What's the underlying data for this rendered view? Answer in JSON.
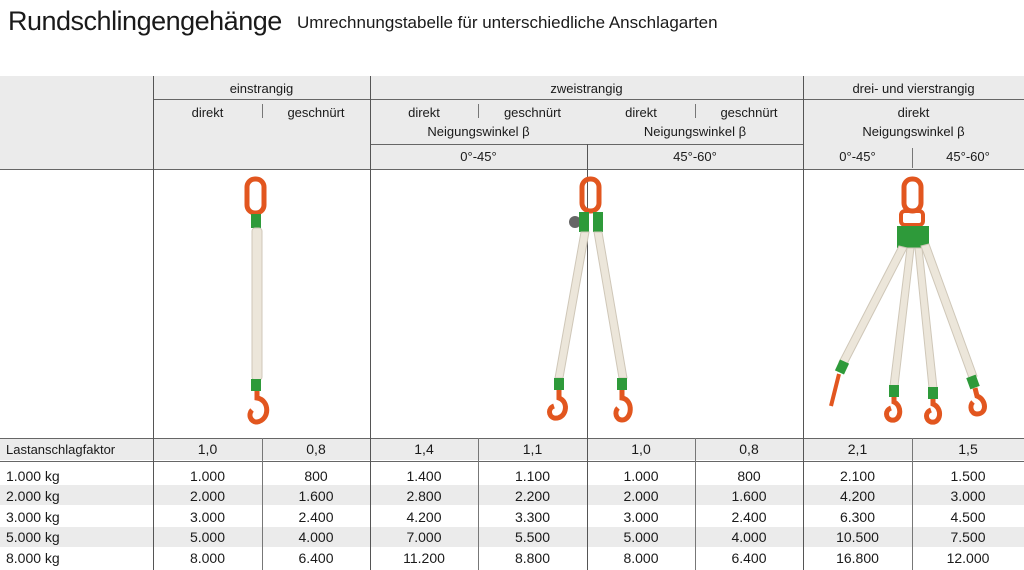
{
  "title": "Rundschlingengehänge",
  "subtitle": "Umrechnungstabelle für unterschiedliche Anschlagarten",
  "table": {
    "groups": [
      "einstrangig",
      "zweistrangig",
      "drei- und vierstrangig"
    ],
    "sub_labels": {
      "einstrangig": [
        "direkt",
        "geschnürt"
      ],
      "zweistrangig_a": [
        "direkt",
        "geschnürt"
      ],
      "zweistrangig_b": [
        "direkt",
        "geschnürt"
      ],
      "drei_direkt": "direkt"
    },
    "neigungswinkel": "Neigungswinkel β",
    "angles": [
      "0°-45°",
      "45°-60°",
      "0°-45°",
      "45°-60°"
    ],
    "factor_label": "Lastanschlagfaktor",
    "factors": [
      "1,0",
      "0,8",
      "1,4",
      "1,1",
      "1,0",
      "0,8",
      "2,1",
      "1,5"
    ],
    "rows": [
      {
        "label": "1.000 kg",
        "values": [
          "1.000",
          "800",
          "1.400",
          "1.100",
          "1.000",
          "800",
          "2.100",
          "1.500"
        ]
      },
      {
        "label": "2.000 kg",
        "values": [
          "2.000",
          "1.600",
          "2.800",
          "2.200",
          "2.000",
          "1.600",
          "4.200",
          "3.000"
        ]
      },
      {
        "label": "3.000 kg",
        "values": [
          "3.000",
          "2.400",
          "4.200",
          "3.300",
          "3.000",
          "2.400",
          "6.300",
          "4.500"
        ]
      },
      {
        "label": "5.000 kg",
        "values": [
          "5.000",
          "4.000",
          "7.000",
          "5.500",
          "5.000",
          "4.000",
          "10.500",
          "7.500"
        ]
      },
      {
        "label": "8.000 kg",
        "values": [
          "8.000",
          "6.400",
          "11.200",
          "8.800",
          "8.000",
          "6.400",
          "16.800",
          "12.000"
        ]
      }
    ]
  },
  "colors": {
    "hook": "#e2561f",
    "sling": "#ece6da",
    "collar": "#2e9a3a"
  }
}
